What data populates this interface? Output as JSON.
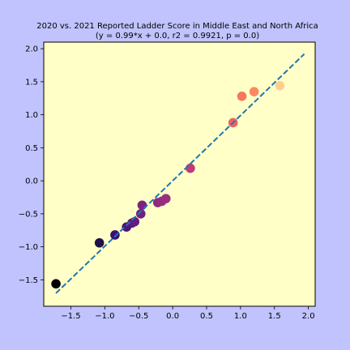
{
  "colors": {
    "figure_background": "#c0c3fd",
    "plot_background": "#ffffc7",
    "trend_line": "#1f77b4"
  },
  "chart_data": {
    "type": "scatter",
    "title": "2020 vs. 2021 Reported Ladder Score in Middle East and North Africa",
    "subtitle": "(y = 0.99*x + 0.0, r2 = 0.9921, p = 0.0)",
    "xlabel": "",
    "ylabel": "",
    "xlim": [
      -1.9,
      2.1
    ],
    "ylim": [
      -1.9,
      2.1
    ],
    "xticks": [
      -1.5,
      -1.0,
      -0.5,
      0.0,
      0.5,
      1.0,
      1.5,
      2.0
    ],
    "xtick_labels": [
      "−1.5",
      "−1.0",
      "−0.5",
      "0.0",
      "0.5",
      "1.0",
      "1.5",
      "2.0"
    ],
    "yticks": [
      -1.5,
      -1.0,
      -0.5,
      0.0,
      0.5,
      1.0,
      1.5,
      2.0
    ],
    "ytick_labels": [
      "−1.5",
      "−1.0",
      "−0.5",
      "0.0",
      "0.5",
      "1.0",
      "1.5",
      "2.0"
    ],
    "grid": false,
    "legend": "none",
    "colormap": "magma",
    "points": [
      {
        "x": -1.72,
        "y": -1.56,
        "color": "#000004"
      },
      {
        "x": -1.08,
        "y": -0.94,
        "color": "#1d1147"
      },
      {
        "x": -0.85,
        "y": -0.82,
        "color": "#3b0f70"
      },
      {
        "x": -0.68,
        "y": -0.7,
        "color": "#51127c"
      },
      {
        "x": -0.6,
        "y": -0.64,
        "color": "#5c167f"
      },
      {
        "x": -0.56,
        "y": -0.62,
        "color": "#641a80"
      },
      {
        "x": -0.47,
        "y": -0.5,
        "color": "#721f81"
      },
      {
        "x": -0.45,
        "y": -0.37,
        "color": "#7c2382"
      },
      {
        "x": -0.22,
        "y": -0.33,
        "color": "#8c2981"
      },
      {
        "x": -0.16,
        "y": -0.31,
        "color": "#942c80"
      },
      {
        "x": -0.1,
        "y": -0.27,
        "color": "#9b2e7f"
      },
      {
        "x": 0.26,
        "y": 0.19,
        "color": "#c03a76"
      },
      {
        "x": 0.89,
        "y": 0.88,
        "color": "#f1605d"
      },
      {
        "x": 1.02,
        "y": 1.28,
        "color": "#f8765c"
      },
      {
        "x": 1.2,
        "y": 1.35,
        "color": "#fc8961"
      },
      {
        "x": 1.58,
        "y": 1.44,
        "color": "#fecf92"
      }
    ],
    "trend_line": {
      "slope": 0.99,
      "intercept": 0.0,
      "x_start": -1.72,
      "x_end": 1.94,
      "style": "dashed"
    }
  }
}
